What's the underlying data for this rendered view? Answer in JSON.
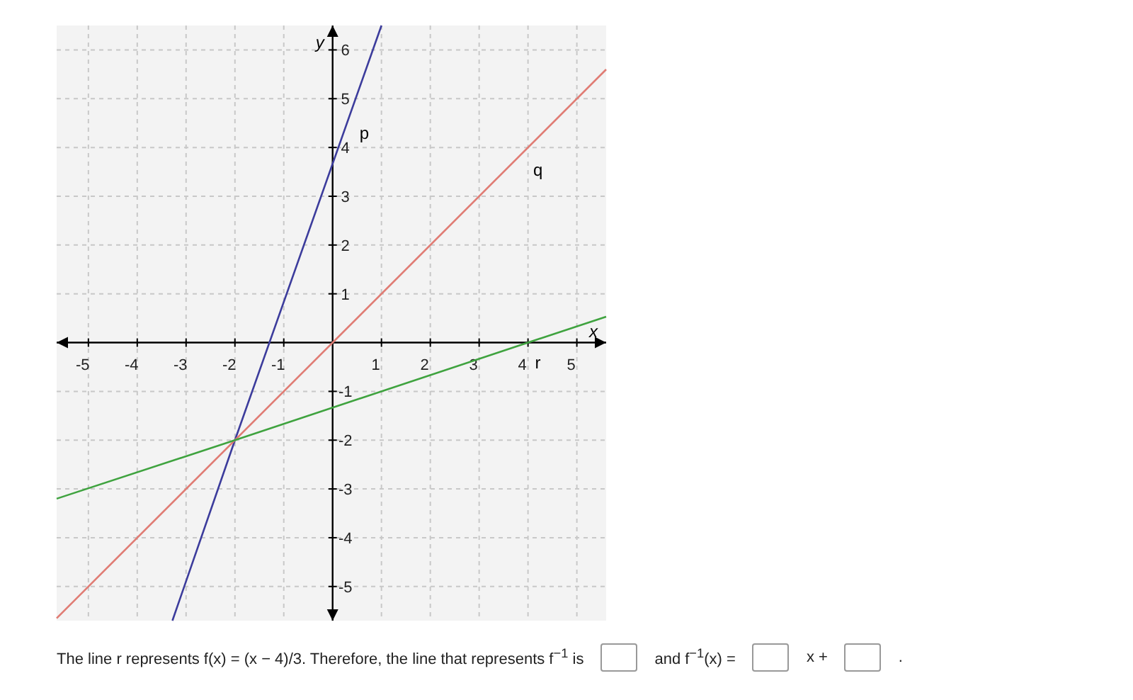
{
  "chart_data": {
    "type": "line",
    "xlabel": "x",
    "ylabel": "y",
    "xlim": [
      -5.65,
      5.6
    ],
    "ylim": [
      -5.7,
      6.5
    ],
    "xticks": [
      -5,
      -4,
      -3,
      -2,
      -1,
      1,
      2,
      3,
      4,
      5
    ],
    "yticks": [
      -5,
      -4,
      -3,
      -2,
      -1,
      1,
      2,
      3,
      4,
      5,
      6
    ],
    "grid": true,
    "series": [
      {
        "name": "p",
        "color": "#3c3c9c",
        "x": [
          -3.28,
          -2,
          1
        ],
        "values": [
          -5.7,
          -2,
          6.5
        ]
      },
      {
        "name": "q",
        "color": "#e07c74",
        "x": [
          -5.65,
          5.6
        ],
        "values": [
          -5.65,
          5.6
        ]
      },
      {
        "name": "r",
        "color": "#3fa33f",
        "x": [
          -5.65,
          -2,
          4,
          5.6
        ],
        "values": [
          -3.2,
          -2,
          0,
          0.53
        ]
      }
    ],
    "annotations": [
      "The line r represents f(x) = (x − 4)/3. Therefore, the line that represents f$^{−1}$ is",
      "and f$^{−1}$(x) =",
      "x +",
      "."
    ]
  }
}
